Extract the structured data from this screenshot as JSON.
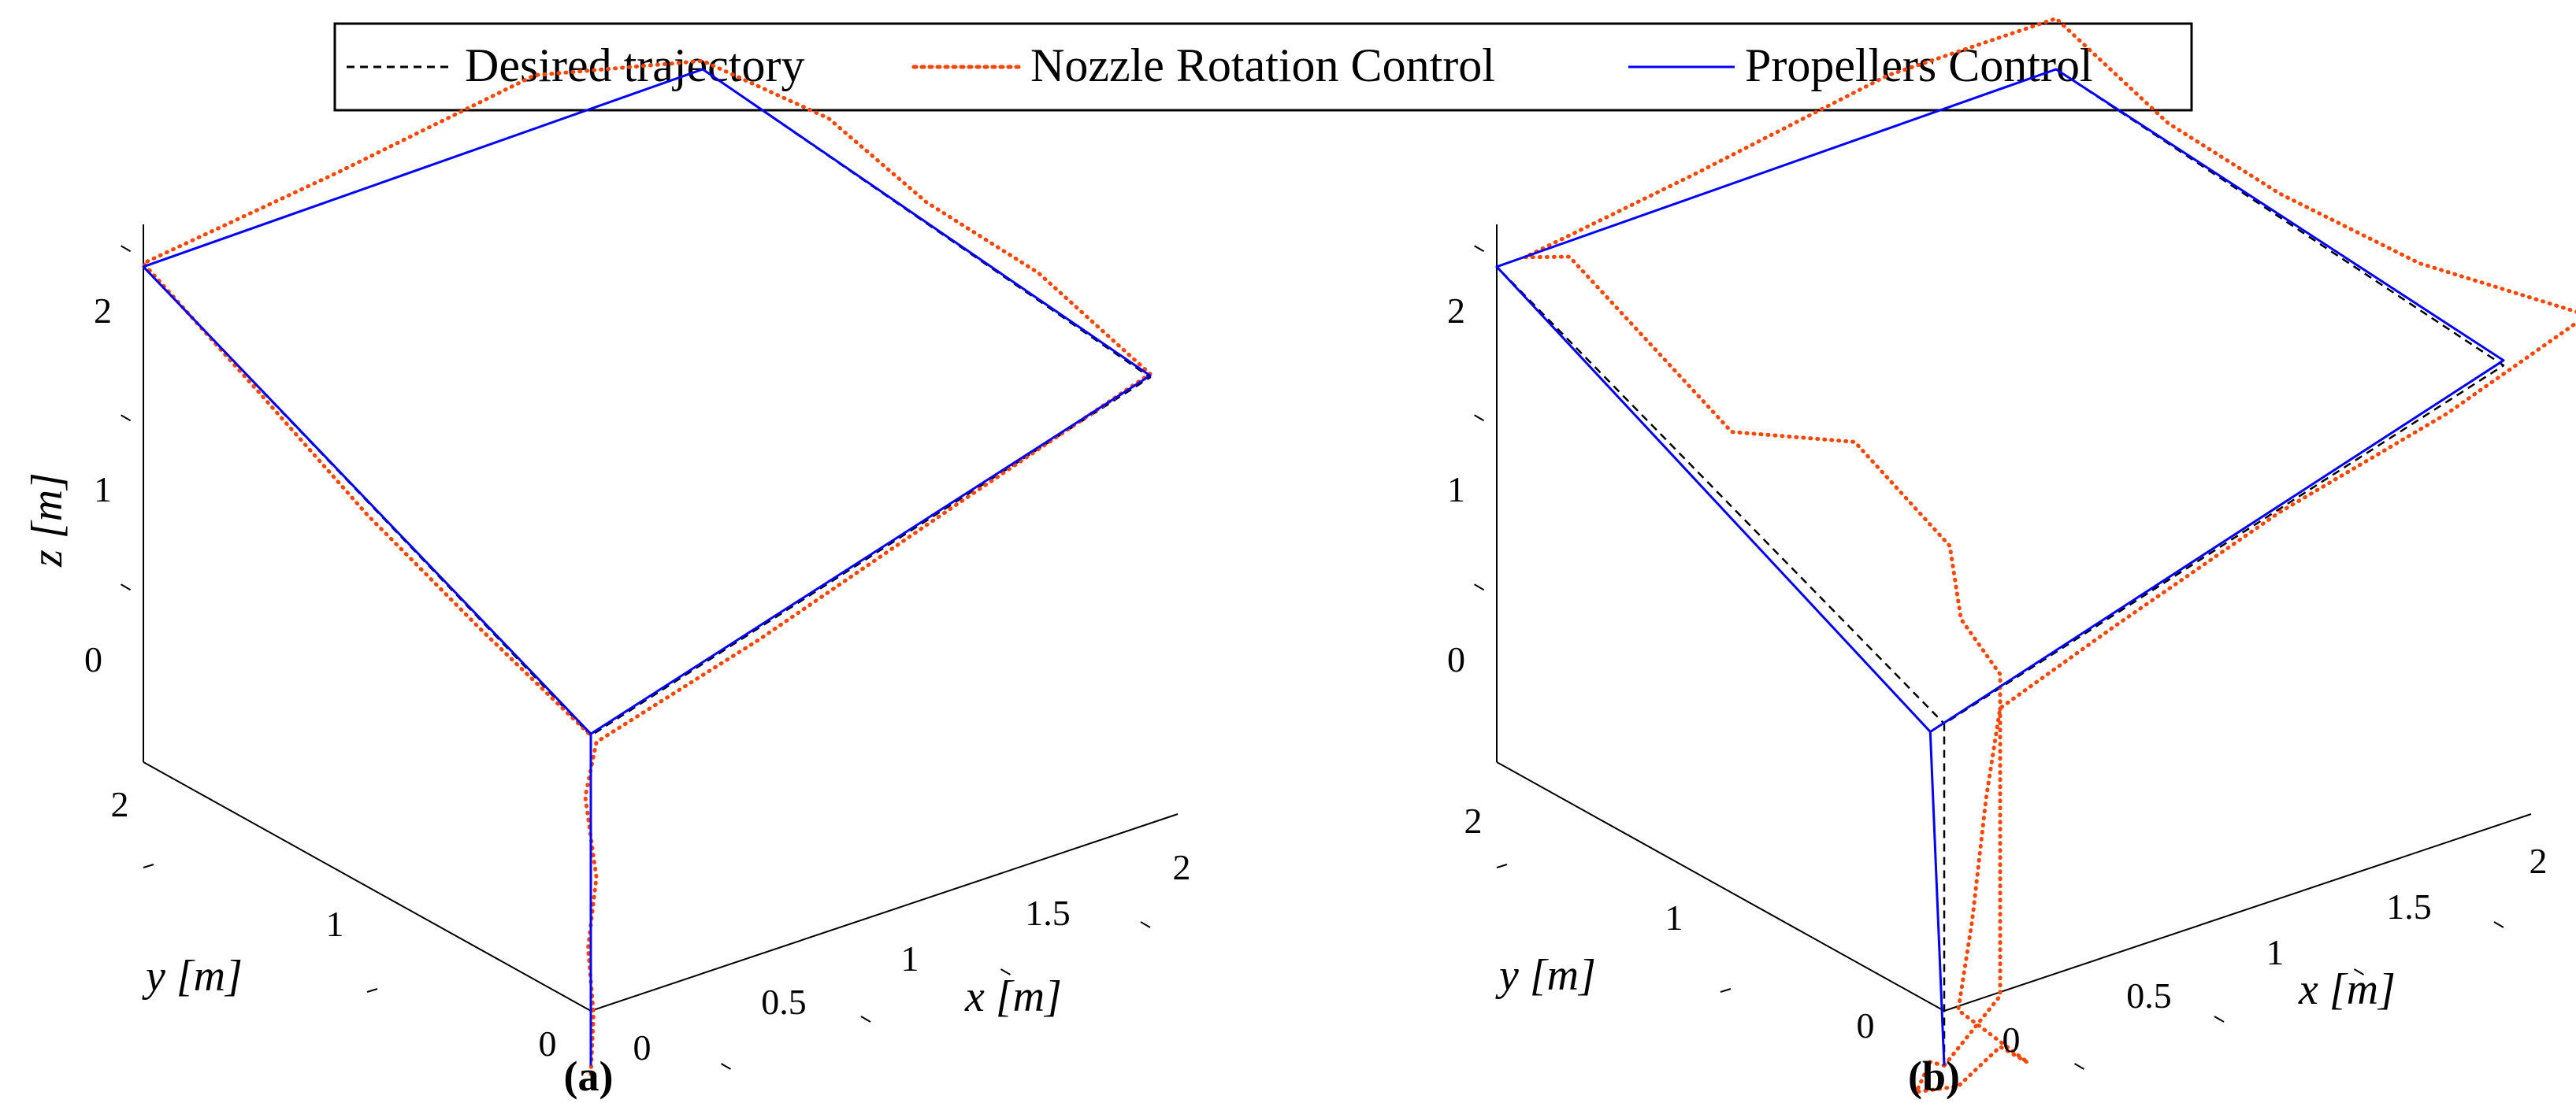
{
  "legend": {
    "placement": "top-center",
    "entries": [
      {
        "label": "Desired trajectory",
        "style": "dashed",
        "color": "#000000"
      },
      {
        "label": "Nozzle Rotation Control",
        "style": "dotted",
        "color": "#ff4500"
      },
      {
        "label": "Propellers Control",
        "style": "solid",
        "color": "#0000ff"
      }
    ]
  },
  "chart_data": [
    {
      "type": "line3d",
      "panel_label": "(a)",
      "xlabel": "x [m]",
      "ylabel": "y [m]",
      "zlabel": "z [m]",
      "x_ticks": [
        "0",
        "0.5",
        "1",
        "1.5",
        "2"
      ],
      "y_ticks": [
        "0",
        "1",
        "2"
      ],
      "z_ticks": [
        "0",
        "1",
        "2"
      ],
      "xlim": [
        0,
        2.1
      ],
      "ylim": [
        0,
        2.1
      ],
      "zlim": [
        -0.5,
        2.5
      ],
      "series": [
        {
          "name": "Desired trajectory",
          "style": "dashed",
          "color": "#000000",
          "points": [
            [
              0,
              0,
              -1.3
            ],
            [
              0,
              0,
              0.65
            ],
            [
              2,
              0,
              1.65
            ],
            [
              2,
              2,
              2.0
            ],
            [
              0,
              2,
              1.95
            ],
            [
              0,
              0,
              0.65
            ]
          ]
        },
        {
          "name": "Nozzle Rotation Control",
          "style": "dotted",
          "color": "#ff4500",
          "points": [
            [
              0,
              0,
              -1.35
            ],
            [
              0.01,
              0,
              -1.0
            ],
            [
              -0.01,
              0,
              -0.6
            ],
            [
              0.02,
              0,
              -0.2
            ],
            [
              -0.02,
              0,
              0.3
            ],
            [
              0.02,
              0,
              0.6
            ],
            [
              0.6,
              0,
              0.88
            ],
            [
              1.3,
              0,
              1.28
            ],
            [
              2.0,
              0,
              1.67
            ],
            [
              2.0,
              0.5,
              1.9
            ],
            [
              2.0,
              1.0,
              1.95
            ],
            [
              2.05,
              1.5,
              2.05
            ],
            [
              2.0,
              2.0,
              2.05
            ],
            [
              1.4,
              2.0,
              2.3
            ],
            [
              0.7,
              2.0,
              2.12
            ],
            [
              0,
              2.0,
              1.97
            ],
            [
              0,
              1.5,
              1.6
            ],
            [
              0,
              1.0,
              1.22
            ],
            [
              0,
              0.5,
              0.92
            ],
            [
              0,
              0,
              0.65
            ]
          ]
        },
        {
          "name": "Propellers Control",
          "style": "solid",
          "color": "#0000ff",
          "points": [
            [
              0,
              0,
              -1.3
            ],
            [
              0,
              0,
              0.66
            ],
            [
              2,
              0,
              1.66
            ],
            [
              2,
              2,
              2.0
            ],
            [
              0,
              2,
              1.95
            ],
            [
              0,
              0,
              0.66
            ]
          ]
        }
      ]
    },
    {
      "type": "line3d",
      "panel_label": "(b)",
      "xlabel": "x [m]",
      "ylabel": "y [m]",
      "zlabel": "",
      "x_ticks": [
        "0",
        "0.5",
        "1",
        "1.5",
        "2"
      ],
      "y_ticks": [
        "0",
        "1",
        "2"
      ],
      "z_ticks": [
        "0",
        "1",
        "2"
      ],
      "xlim": [
        0,
        2.1
      ],
      "ylim": [
        0,
        2.1
      ],
      "zlim": [
        -0.5,
        2.5
      ],
      "series": [
        {
          "name": "Desired trajectory",
          "style": "dashed",
          "color": "#000000",
          "points": [
            [
              0,
              0,
              -1.3
            ],
            [
              0,
              0,
              0.72
            ],
            [
              2,
              0,
              1.72
            ],
            [
              2,
              2,
              2.0
            ],
            [
              0,
              2,
              1.95
            ],
            [
              0,
              0,
              0.72
            ]
          ]
        },
        {
          "name": "Nozzle Rotation Control",
          "style": "dotted",
          "color": "#ff4500",
          "points": [
            [
              0,
              0,
              -1.3
            ],
            [
              -0.05,
              0,
              -1.25
            ],
            [
              -0.1,
              0,
              -1.4
            ],
            [
              0.05,
              0,
              -1.45
            ],
            [
              0.2,
              0,
              -1.3
            ],
            [
              0.3,
              0,
              -1.45
            ],
            [
              0.05,
              0,
              -1.0
            ],
            [
              0.1,
              0,
              -0.5
            ],
            [
              0.15,
              0,
              0.2
            ],
            [
              0.2,
              0,
              0.7
            ],
            [
              0.6,
              0,
              0.95
            ],
            [
              1.2,
              0,
              1.3
            ],
            [
              1.8,
              0,
              1.55
            ],
            [
              2.3,
              0,
              1.85
            ],
            [
              2.1,
              0.5,
              1.9
            ],
            [
              2.0,
              1.0,
              2.0
            ],
            [
              2.0,
              1.5,
              2.05
            ],
            [
              2.0,
              2.0,
              2.3
            ],
            [
              1.4,
              2.0,
              2.3
            ],
            [
              0.7,
              2.0,
              2.1
            ],
            [
              0.1,
              2.0,
              1.95
            ],
            [
              0.1,
              1.8,
              2.1
            ],
            [
              0.2,
              1.2,
              1.45
            ],
            [
              0.4,
              0.9,
              1.5
            ],
            [
              0.5,
              0.6,
              1.05
            ],
            [
              0.3,
              0.3,
              0.95
            ],
            [
              0.2,
              0,
              0.9
            ],
            [
              0.2,
              0,
              -1.0
            ],
            [
              0,
              0,
              -1.3
            ]
          ]
        },
        {
          "name": "Propellers Control",
          "style": "solid",
          "color": "#0000ff",
          "points": [
            [
              0,
              0,
              -1.3
            ],
            [
              -0.05,
              0,
              0.7
            ],
            [
              2,
              0,
              1.75
            ],
            [
              2,
              2,
              2.0
            ],
            [
              0,
              2,
              1.95
            ],
            [
              -0.05,
              0,
              0.7
            ]
          ]
        }
      ]
    }
  ]
}
